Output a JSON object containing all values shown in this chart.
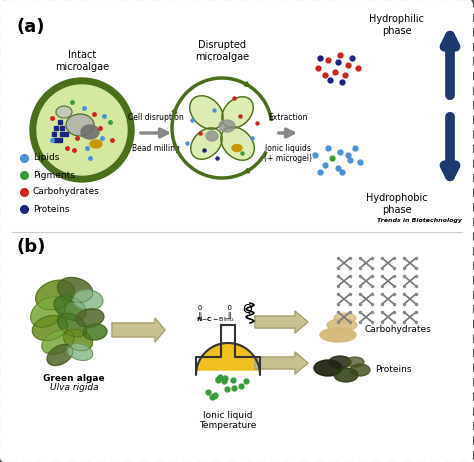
{
  "fig_width": 4.74,
  "fig_height": 4.62,
  "dpi": 100,
  "background": "#ffffff",
  "border_color": "#555555",
  "panel_a_label": "(a)",
  "panel_b_label": "(b)",
  "panel_a_title1": "Intact\nmicroalgae",
  "panel_a_title2": "Disrupted\nmicroalgae",
  "cell_disruption_label": "Cell disruption",
  "bead_milling_label": "Bead milling",
  "extraction_label": "Extraction",
  "ionic_liquid_label": "Ionic liquids\n(+ microgel)",
  "hydrophilic_label": "Hydrophilic\nphase",
  "hydrophobic_label": "Hydrophobic\nphase",
  "legend_items": [
    {
      "label": "Lipids",
      "color": "#4a90d9"
    },
    {
      "label": "Pigments",
      "color": "#3a9a3a"
    },
    {
      "label": "Carbohydrates",
      "color": "#cc2222"
    },
    {
      "label": "Proteins",
      "color": "#1a237e"
    }
  ],
  "trends_label": "Trends in Biotechnology",
  "panel_b_label_green_algae": "Green algae",
  "panel_b_label_ulva": "Ulva rigida",
  "panel_b_label_ionic": "Ionic liquid\nTemperature",
  "panel_b_label_carbo": "Carbohydrates",
  "panel_b_label_proteins": "Proteins",
  "arrow_gray": "#888888",
  "arrow_dark_blue": "#1c3a6e",
  "cell_wall_color": "#4a6e1a",
  "cell_inner_color": "#d4e8a0",
  "organelle_gray": "#9a9a9a",
  "organelle_dark": "#555555",
  "organelle_gold": "#c8960a",
  "dot_lipid": "#4a90d9",
  "dot_pigment": "#3a9a3a",
  "dot_carbo": "#cc2222",
  "dot_protein": "#1a237e",
  "flask_yellow": "#f0c020",
  "flask_line": "#333333",
  "flask_dot": "#3a9a3a",
  "carbo_beige": "#d4b878",
  "protein_dark": "#2a2a1a",
  "protein_olive": "#3a5020",
  "arrow_beige": "#c8c090",
  "panel_divider": "#cccccc"
}
